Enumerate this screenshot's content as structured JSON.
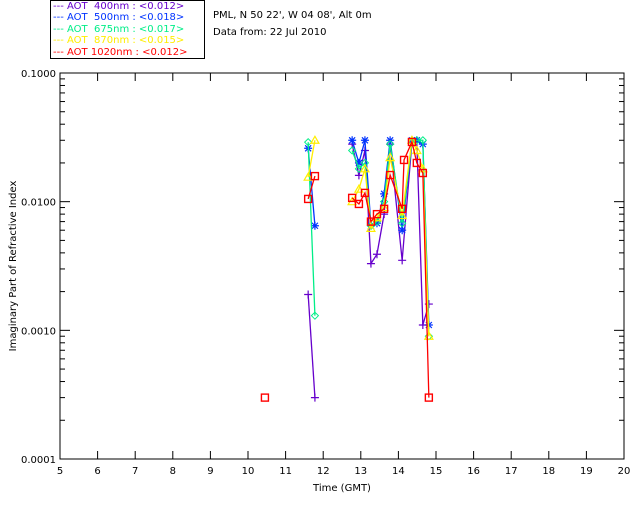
{
  "header": {
    "site": "PML, N 50 22', W 04 08', Alt 0m",
    "date": "Data from: 22 Jul 2010"
  },
  "chart_data": {
    "type": "line",
    "title": "",
    "xlabel": "Time (GMT)",
    "ylabel": "Imaginary Part of Refractive Index",
    "xlim": [
      5,
      20
    ],
    "ylim": [
      0.0001,
      0.1
    ],
    "yscale": "log",
    "x_ticks": [
      "5",
      "6",
      "7",
      "8",
      "9",
      "10",
      "11",
      "12",
      "13",
      "14",
      "15",
      "16",
      "17",
      "18",
      "19",
      "20"
    ],
    "y_ticks": [
      "0.1000",
      "0.0100",
      "0.0010",
      "0.0001"
    ],
    "legend_position": "top-left-outside",
    "series": [
      {
        "name": "AOT  400nm : <0.012>",
        "color": "#6600cc",
        "marker": "plus",
        "x": [
          11.6,
          11.78,
          12.77,
          12.95,
          13.11,
          13.27,
          13.43,
          13.62,
          13.78,
          14.1,
          14.36,
          14.49,
          14.65,
          14.81
        ],
        "y": [
          0.0019,
          0.0003,
          0.028,
          0.016,
          0.025,
          0.0033,
          0.0039,
          0.008,
          0.028,
          0.0035,
          0.029,
          0.029,
          0.0011,
          0.0016
        ]
      },
      {
        "name": "AOT  500nm : <0.018>",
        "color": "#0033ff",
        "marker": "asterisk",
        "x": [
          11.6,
          11.78,
          12.77,
          12.95,
          13.11,
          13.27,
          13.43,
          13.62,
          13.78,
          14.1,
          14.36,
          14.49,
          14.65,
          14.81
        ],
        "y": [
          0.026,
          0.0065,
          0.03,
          0.02,
          0.03,
          0.0065,
          0.0068,
          0.0115,
          0.03,
          0.006,
          0.03,
          0.03,
          0.028,
          0.0011
        ]
      },
      {
        "name": "AOT  675nm : <0.017>",
        "color": "#00ee88",
        "marker": "diamond",
        "x": [
          11.6,
          11.78,
          12.77,
          12.95,
          13.11,
          13.27,
          13.43,
          13.62,
          13.78,
          14.1,
          14.36,
          14.49,
          14.65,
          14.81
        ],
        "y": [
          0.029,
          0.0013,
          0.025,
          0.018,
          0.02,
          0.0065,
          0.007,
          0.01,
          0.028,
          0.0068,
          0.029,
          0.03,
          0.03,
          0.0009
        ]
      },
      {
        "name": "AOT  870nm : <0.015>",
        "color": "#ffee00",
        "marker": "triangle",
        "x": [
          11.6,
          11.78,
          12.77,
          12.95,
          13.11,
          13.27,
          13.43,
          13.62,
          13.78,
          14.1,
          14.36,
          14.49,
          14.65,
          14.81
        ],
        "y": [
          0.0155,
          0.03,
          0.01,
          0.0125,
          0.018,
          0.0062,
          0.0075,
          0.009,
          0.022,
          0.0078,
          0.03,
          0.025,
          0.018,
          0.0009
        ]
      },
      {
        "name": "AOT 1020nm : <0.012>",
        "color": "#ff0000",
        "marker": "square",
        "x": [
          10.45,
          11.6,
          11.78,
          12.77,
          12.95,
          13.11,
          13.27,
          13.43,
          13.62,
          13.78,
          14.1,
          14.15,
          14.36,
          14.49,
          14.65,
          14.81
        ],
        "y": [
          0.0003,
          0.0105,
          0.0158,
          0.0107,
          0.0096,
          0.0117,
          0.007,
          0.008,
          0.0088,
          0.0161,
          0.0088,
          0.0211,
          0.0291,
          0.02,
          0.0167,
          0.0003
        ]
      }
    ]
  }
}
